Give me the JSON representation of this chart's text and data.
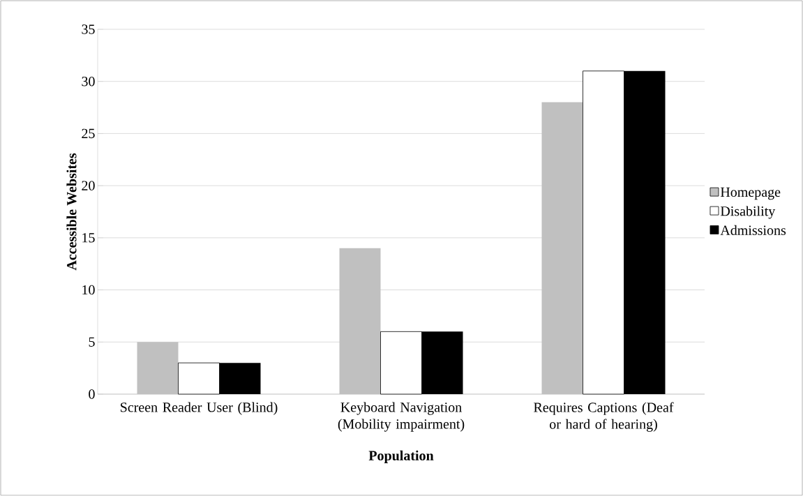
{
  "chart_data": {
    "type": "bar",
    "xlabel": "Population",
    "ylabel": "Accessible Websites",
    "categories": [
      "Screen Reader User (Blind)",
      "Keyboard Navigation (Mobility impairment)",
      "Requires Captions (Deaf or hard of hearing)"
    ],
    "series": [
      {
        "name": "Homepage",
        "color": "#c0c0c0",
        "values": [
          5,
          14,
          28
        ]
      },
      {
        "name": "Disability",
        "color": "#ffffff",
        "values": [
          3,
          6,
          31
        ]
      },
      {
        "name": "Admissions",
        "color": "#000000",
        "values": [
          3,
          6,
          31
        ]
      }
    ],
    "ylim": [
      0,
      35
    ],
    "yticks": [
      0,
      5,
      10,
      15,
      20,
      25,
      30,
      35
    ],
    "grid": "y",
    "legend": "right"
  }
}
